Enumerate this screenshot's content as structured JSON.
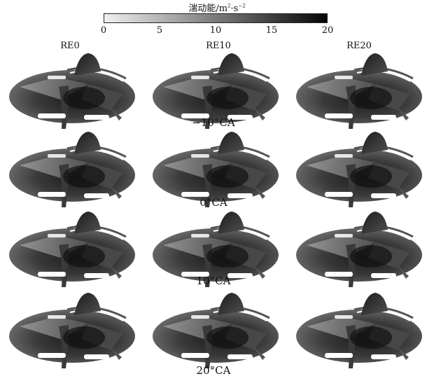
{
  "colorbar": {
    "title": "湍动能/m",
    "title_sup1": "2",
    "title_mid": "·s",
    "title_sup2": "−2",
    "ticks": [
      "0",
      "5",
      "10",
      "15",
      "20"
    ],
    "min": 0,
    "max": 20,
    "color_low": "#f0f0f0",
    "color_high": "#050505"
  },
  "columns": [
    "RE0",
    "RE10",
    "RE20"
  ],
  "rows": [
    "−10°CA",
    "0°CA",
    "10°CA",
    "20°CA"
  ]
}
